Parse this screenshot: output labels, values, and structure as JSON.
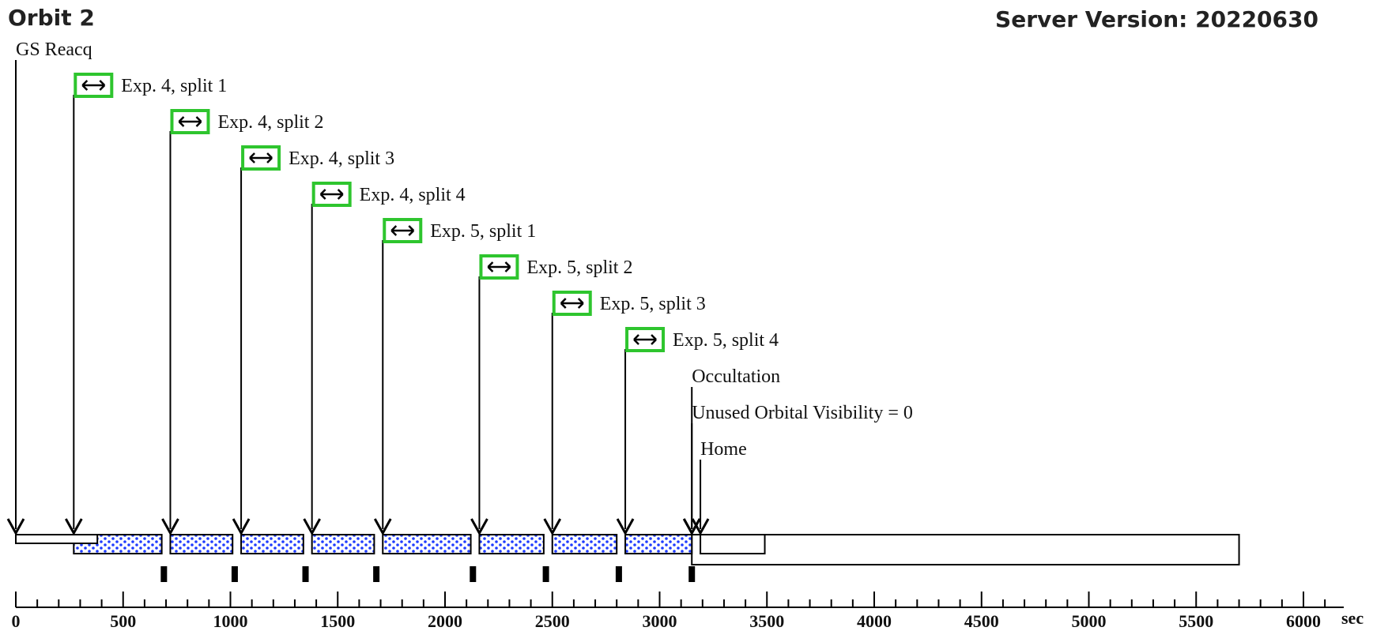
{
  "header": {
    "title": "Orbit 2",
    "server_version": "Server Version: 20220630"
  },
  "axis": {
    "unit_label": "sec",
    "range": [
      0,
      6200
    ],
    "tick_labels": [
      0,
      500,
      1000,
      1500,
      2000,
      2500,
      3000,
      3500,
      4000,
      4500,
      5000,
      5500,
      6000
    ],
    "minor_step": 100
  },
  "events": [
    {
      "label": "GS Reacq",
      "time": 0,
      "has_icon": false
    },
    {
      "label": "Exp. 4, split 1",
      "time": 270,
      "has_icon": true
    },
    {
      "label": "Exp. 4, split 2",
      "time": 720,
      "has_icon": true
    },
    {
      "label": "Exp. 4, split 3",
      "time": 1050,
      "has_icon": true
    },
    {
      "label": "Exp. 4, split 4",
      "time": 1380,
      "has_icon": true
    },
    {
      "label": "Exp. 5, split 1",
      "time": 1710,
      "has_icon": true
    },
    {
      "label": "Exp. 5, split 2",
      "time": 2160,
      "has_icon": true
    },
    {
      "label": "Exp. 5, split 3",
      "time": 2500,
      "has_icon": true
    },
    {
      "label": "Exp. 5, split 4",
      "time": 2840,
      "has_icon": true
    },
    {
      "label": "Occultation",
      "time": 3150,
      "has_icon": false
    },
    {
      "label": "Unused Orbital Visibility = 0",
      "time": 3150,
      "has_icon": false
    },
    {
      "label": "Home",
      "time": 3190,
      "has_icon": false
    }
  ],
  "bars": {
    "gs_reacq": [
      0,
      380
    ],
    "exposures": [
      [
        270,
        680
      ],
      [
        720,
        1010
      ],
      [
        1050,
        1340
      ],
      [
        1380,
        1670
      ],
      [
        1710,
        2120
      ],
      [
        2160,
        2460
      ],
      [
        2500,
        2800
      ],
      [
        2840,
        3150
      ]
    ],
    "occultation": [
      3150,
      5700
    ],
    "home": [
      3190,
      3490
    ]
  },
  "markers": [
    690,
    1020,
    1350,
    1680,
    2130,
    2470,
    2810,
    3150
  ],
  "colors": {
    "icon_border": "#2ec52e",
    "exposure_fill": "#1f3cff",
    "line": "#000000"
  },
  "icons": {
    "exposure": "bidirectional-arrow-icon"
  }
}
